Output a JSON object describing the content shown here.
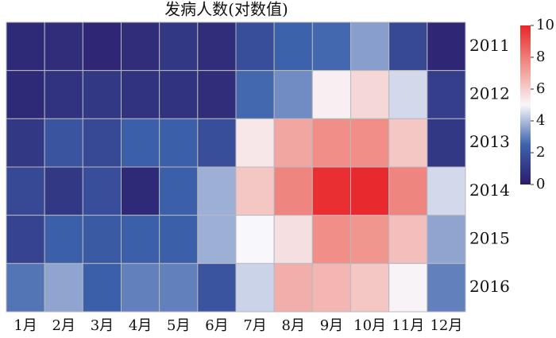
{
  "chart_data": {
    "type": "heatmap",
    "title": "发病人数(对数值)",
    "categories": [
      "1月",
      "2月",
      "3月",
      "4月",
      "5月",
      "6月",
      "7月",
      "8月",
      "9月",
      "10月",
      "11月",
      "12月"
    ],
    "rows": [
      "2011",
      "2012",
      "2013",
      "2014",
      "2015",
      "2016"
    ],
    "values": [
      [
        0.5,
        0.6,
        0.4,
        0.6,
        1.0,
        0.6,
        1.8,
        2.5,
        2.6,
        3.5,
        1.6,
        0.4
      ],
      [
        0.5,
        0.8,
        1.0,
        0.8,
        0.8,
        0.6,
        2.6,
        3.2,
        5.2,
        5.8,
        4.5,
        1.2
      ],
      [
        1.0,
        2.0,
        1.6,
        2.4,
        2.4,
        1.8,
        5.4,
        7.0,
        7.6,
        7.6,
        6.2,
        1.0
      ],
      [
        1.6,
        1.0,
        1.8,
        0.5,
        2.4,
        3.8,
        6.2,
        7.8,
        9.8,
        9.9,
        7.8,
        4.5
      ],
      [
        1.4,
        2.4,
        2.2,
        2.4,
        2.4,
        3.8,
        5.0,
        5.6,
        7.6,
        7.4,
        6.4,
        3.6
      ],
      [
        2.8,
        3.6,
        2.4,
        3.0,
        3.0,
        2.0,
        4.4,
        6.8,
        6.6,
        6.2,
        5.1,
        3.0
      ]
    ],
    "colormap": [
      "#2c1c6b",
      "#3d62ac",
      "#f8f7fb",
      "#f0928b",
      "#e8262a"
    ],
    "zlim": [
      0,
      10
    ],
    "zticks": [
      0,
      2,
      4,
      6,
      8,
      10
    ]
  }
}
